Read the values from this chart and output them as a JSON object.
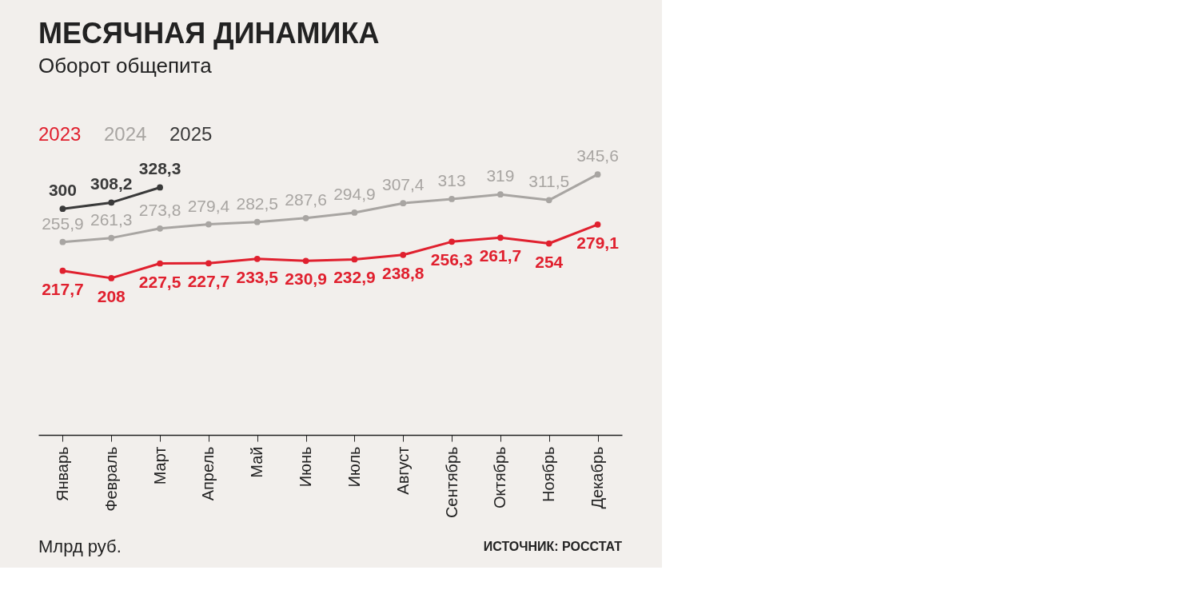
{
  "chart_data": {
    "type": "line",
    "title": "МЕСЯЧНАЯ ДИНАМИКА",
    "subtitle": "Оборот общепита",
    "categories": [
      "Январь",
      "Февраль",
      "Март",
      "Апрель",
      "Май",
      "Июнь",
      "Июль",
      "Август",
      "Сентябрь",
      "Октябрь",
      "Ноябрь",
      "Декабрь"
    ],
    "series": [
      {
        "name": "2023",
        "color": "#e0202e",
        "values": [
          217.7,
          208,
          227.5,
          227.7,
          233.5,
          230.9,
          232.9,
          238.8,
          256.3,
          261.7,
          254,
          279.1
        ],
        "value_labels": [
          "217,7",
          "208",
          "227,5",
          "227,7",
          "233,5",
          "230,9",
          "232,9",
          "238,8",
          "256,3",
          "261,7",
          "254",
          "279,1"
        ]
      },
      {
        "name": "2024",
        "color": "#a8a5a2",
        "values": [
          255.9,
          261.3,
          273.8,
          279.4,
          282.5,
          287.6,
          294.9,
          307.4,
          313,
          319,
          311.5,
          345.6
        ],
        "value_labels": [
          "255,9",
          "261,3",
          "273,8",
          "279,4",
          "282,5",
          "287,6",
          "294,9",
          "307,4",
          "313",
          "319",
          "311,5",
          "345,6"
        ]
      },
      {
        "name": "2025",
        "color": "#3a3a3a",
        "values": [
          300,
          308.2,
          328.3,
          null,
          null,
          null,
          null,
          null,
          null,
          null,
          null,
          null
        ],
        "value_labels": [
          "300",
          "308,2",
          "328,3",
          null,
          null,
          null,
          null,
          null,
          null,
          null,
          null,
          null
        ]
      }
    ],
    "tick_labels": "x",
    "marker": "circle",
    "line_style": "solid",
    "grid": false,
    "legend": "top left",
    "annotations": [
      "Млрд руб.",
      "ИСТОЧНИК: РОССТАТ"
    ]
  }
}
